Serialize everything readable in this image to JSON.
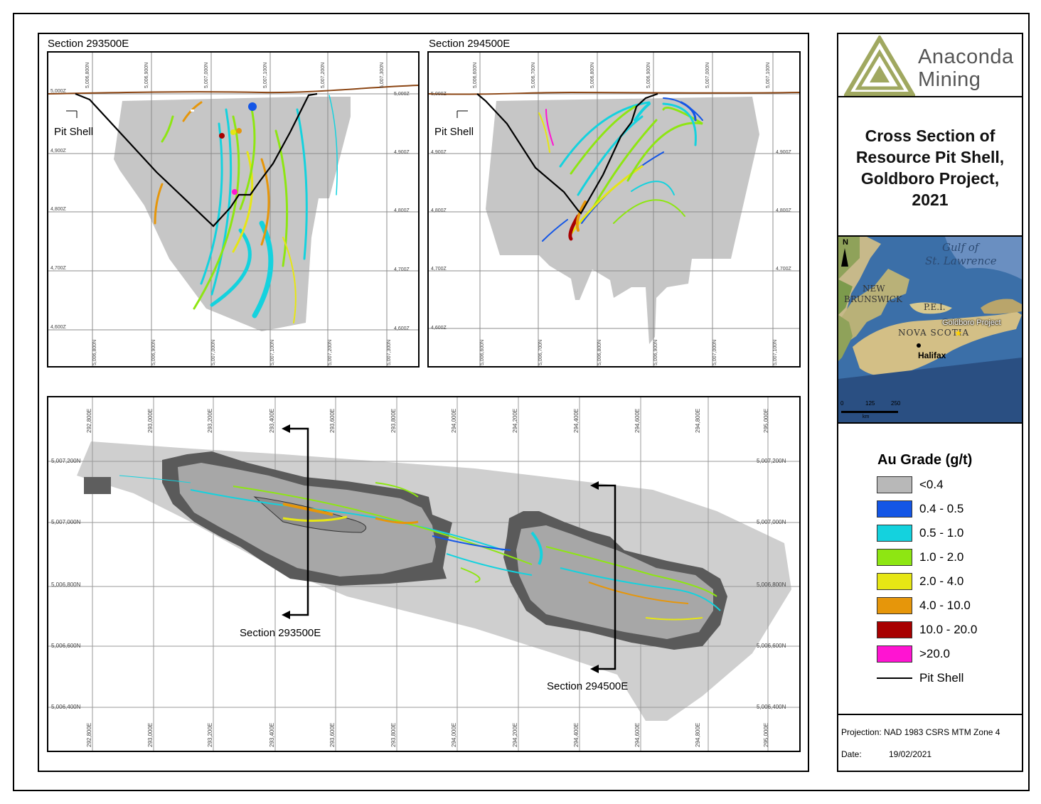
{
  "section_a": {
    "title": "Section 293500E",
    "northing_labels": [
      "5,006,800N",
      "5,006,900N",
      "5,007,000N",
      "5,007,100N",
      "5,007,200N",
      "5,007,300N"
    ],
    "elev_left": [
      "5,000Z",
      "4,900Z",
      "4,800Z",
      "4,700Z",
      "4,600Z"
    ],
    "elev_right": [
      "5,000Z",
      "4,900Z",
      "4,800Z",
      "4,700Z",
      "4,600Z"
    ],
    "pit_label": "Pit Shell"
  },
  "section_b": {
    "title": "Section 294500E",
    "northing_labels": [
      "5,006,600N",
      "5,006,700N",
      "5,006,800N",
      "5,006,900N",
      "5,007,000N",
      "5,007,100N"
    ],
    "elev_left": [
      "5,000Z",
      "4,900Z",
      "4,800Z",
      "4,700Z",
      "4,600Z"
    ],
    "elev_right": [
      "4,900Z",
      "4,800Z",
      "4,700Z"
    ],
    "pit_label": "Pit Shell"
  },
  "plan": {
    "easting_labels": [
      "292,800E",
      "293,000E",
      "293,200E",
      "293,400E",
      "293,600E",
      "293,800E",
      "294,000E",
      "294,200E",
      "294,400E",
      "294,600E",
      "294,800E",
      "295,000E"
    ],
    "northing_left": [
      "5,007,200N",
      "5,007,000N",
      "5,006,800N",
      "5,006,600N",
      "5,006,400N"
    ],
    "northing_right": [
      "5,007,200N",
      "5,007,000N",
      "5,006,800N",
      "5,006,600N",
      "5,006,400N"
    ],
    "section_label_1": "Section 293500E",
    "section_label_2": "Section 294500E"
  },
  "title_block": {
    "logo_line1": "Anaconda",
    "logo_line2": "Mining",
    "title_line1": "Cross Section of",
    "title_line2": "Resource Pit Shell,",
    "title_line3": "Goldboro Project,",
    "title_line4": "2021",
    "inset": {
      "north": "N",
      "gulf1": "Gulf of",
      "gulf2": "St. Lawrence",
      "nb1": "NEW",
      "nb2": "BRUNSWICK",
      "pei": "P.E.I.",
      "ns": "NOVA SCOTIA",
      "project": "Goldboro Project",
      "halifax": "Halifax",
      "scale": [
        "0",
        "125",
        "250"
      ],
      "scale_unit": "km"
    },
    "legend_title": "Au Grade (g/t)",
    "legend": [
      {
        "label": "<0.4",
        "color": "#b8b8b8"
      },
      {
        "label": "0.4 - 0.5",
        "color": "#1456e6"
      },
      {
        "label": "0.5 - 1.0",
        "color": "#14d2de"
      },
      {
        "label": "1.0 - 2.0",
        "color": "#8ee612"
      },
      {
        "label": "2.0 - 4.0",
        "color": "#e6e614"
      },
      {
        "label": "4.0 - 10.0",
        "color": "#e6960a"
      },
      {
        "label": "10.0 - 20.0",
        "color": "#a80000"
      },
      {
        "label": ">20.0",
        "color": "#ff14d2"
      }
    ],
    "legend_line_label": "Pit Shell",
    "projection": "Projection: NAD 1983 CSRS MTM Zone 4",
    "date_label": "Date:",
    "date_value": "19/02/2021"
  }
}
